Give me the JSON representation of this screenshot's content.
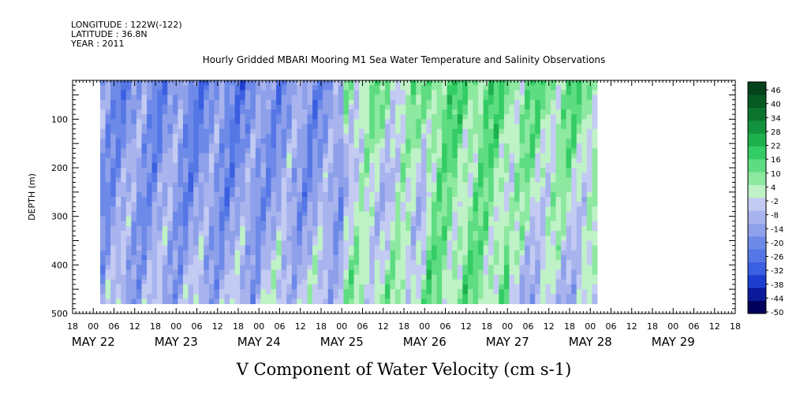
{
  "header": {
    "longitude": "LONGITUDE : 122W(-122)",
    "latitude": "LATITUDE : 36.8N",
    "year": "YEAR : 2011"
  },
  "chart_data": {
    "type": "heatmap",
    "title": "Hourly Gridded MBARI Mooring M1 Sea Water Temperature and Salinity Observations",
    "xlabel": "V Component of Water Velocity (cm s-1)",
    "ylabel": "DEPTH (m)",
    "ylim": [
      500,
      20
    ],
    "y_ticks": [
      100,
      200,
      300,
      400,
      500
    ],
    "x_range_hours": [
      -6,
      186
    ],
    "x_hour_tick_labels": [
      "18",
      "00",
      "06",
      "12",
      "18",
      "00",
      "06",
      "12",
      "18",
      "00",
      "06",
      "12",
      "18",
      "00",
      "06",
      "12",
      "18",
      "00",
      "06",
      "12",
      "18",
      "00",
      "06",
      "12",
      "18",
      "00",
      "06",
      "12",
      "18",
      "00",
      "06",
      "12",
      "18"
    ],
    "x_date_labels": [
      "MAY 22",
      "MAY 23",
      "MAY 24",
      "MAY 25",
      "MAY 26",
      "MAY 27",
      "MAY 28",
      "MAY 29"
    ],
    "data_time_range_hours": [
      2,
      146
    ],
    "colorbar": {
      "min": -50,
      "max": 48,
      "tick_labels": [
        "46",
        "40",
        "34",
        "28",
        "22",
        "16",
        "10",
        "4",
        "-2",
        "-8",
        "-14",
        "-20",
        "-26",
        "-32",
        "-38",
        "-44",
        "-50"
      ],
      "colors_low_to_high": [
        "#00005a",
        "#0a1a9a",
        "#1c3ed0",
        "#3a5fe0",
        "#5577e6",
        "#6e8ae8",
        "#8ea0ea",
        "#a9b4ee",
        "#c3cbf3",
        "#bff2c6",
        "#8de8a0",
        "#5edc82",
        "#34cc64",
        "#1db04c",
        "#12923c",
        "#0b742e",
        "#065a22",
        "#03421a"
      ],
      "colors_note": "blue = negative (southward), green = positive (northward)"
    },
    "grid": false,
    "legend": "colorbar-right",
    "data_summary": {
      "day_values_cm_s": [
        {
          "day": "MAY 22",
          "shallow": -18,
          "mid": -14,
          "deep": -10
        },
        {
          "day": "MAY 23",
          "shallow": -20,
          "mid": -16,
          "deep": -8
        },
        {
          "day": "MAY 24",
          "shallow": -16,
          "mid": -14,
          "deep": -4
        },
        {
          "day": "MAY 25",
          "shallow": 6,
          "mid": -4,
          "deep": 4
        },
        {
          "day": "MAY 26",
          "shallow": 12,
          "mid": 6,
          "deep": 8
        },
        {
          "day": "MAY 27",
          "shallow": 10,
          "mid": 2,
          "deep": -8
        }
      ]
    }
  }
}
